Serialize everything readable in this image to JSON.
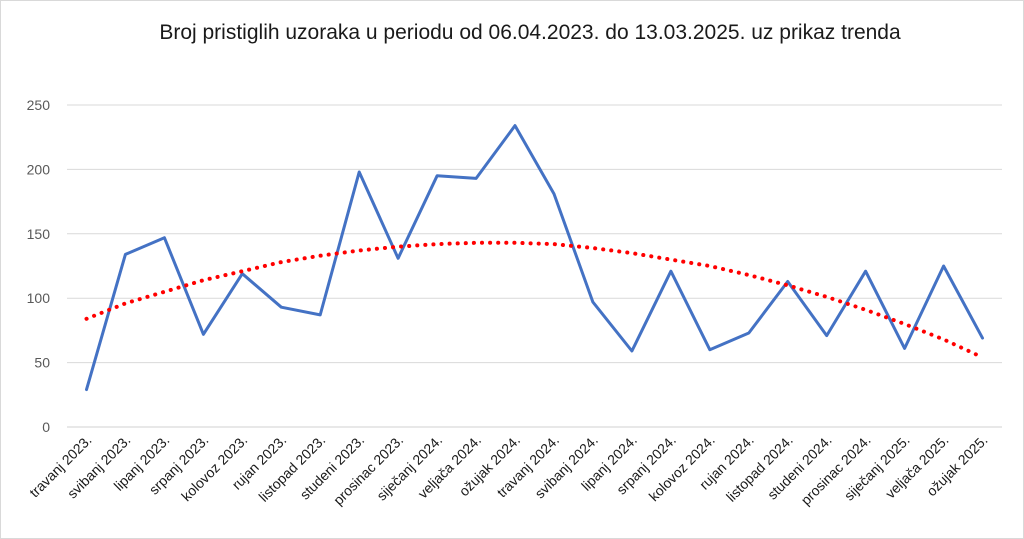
{
  "chart_data": {
    "type": "line",
    "title": "Broj pristiglih uzoraka  u periodu od 06.04.2023. do 13.03.2025. uz prikaz trenda",
    "xlabel": "",
    "ylabel": "",
    "ylim": [
      0,
      250
    ],
    "yticks": [
      "0",
      "50",
      "100",
      "150",
      "200",
      "250"
    ],
    "grid": true,
    "legend": "none",
    "categories": [
      "travanj 2023.",
      "svibanj 2023.",
      "lipanj 2023.",
      "srpanj 2023.",
      "kolovoz 2023.",
      "rujan 2023.",
      "listopad 2023.",
      "studeni 2023.",
      "prosinac 2023.",
      "siječanj 2024.",
      "veljača 2024.",
      "ožujak 2024.",
      "travanj 2024.",
      "svibanj 2024.",
      "lipanj 2024.",
      "srpanj 2024.",
      "kolovoz 2024.",
      "rujan 2024.",
      "listopad 2024.",
      "studeni 2024.",
      "prosinac 2024.",
      "siječanj 2025.",
      "veljača 2025.",
      "ožujak 2025."
    ],
    "series": [
      {
        "values": [
          29,
          134,
          147,
          72,
          119,
          93,
          87,
          198,
          131,
          195,
          193,
          234,
          181,
          97,
          59,
          121,
          60,
          73,
          113,
          71,
          121,
          61,
          125,
          69
        ],
        "color": "#4472c4",
        "style": "solid"
      },
      {
        "values": [
          84,
          96,
          105,
          114,
          121,
          128,
          133,
          137,
          140,
          142,
          143,
          143,
          142,
          139,
          135,
          130,
          125,
          118,
          110,
          101,
          91,
          80,
          68,
          54
        ],
        "color": "#ff0000",
        "style": "dotted"
      }
    ]
  }
}
